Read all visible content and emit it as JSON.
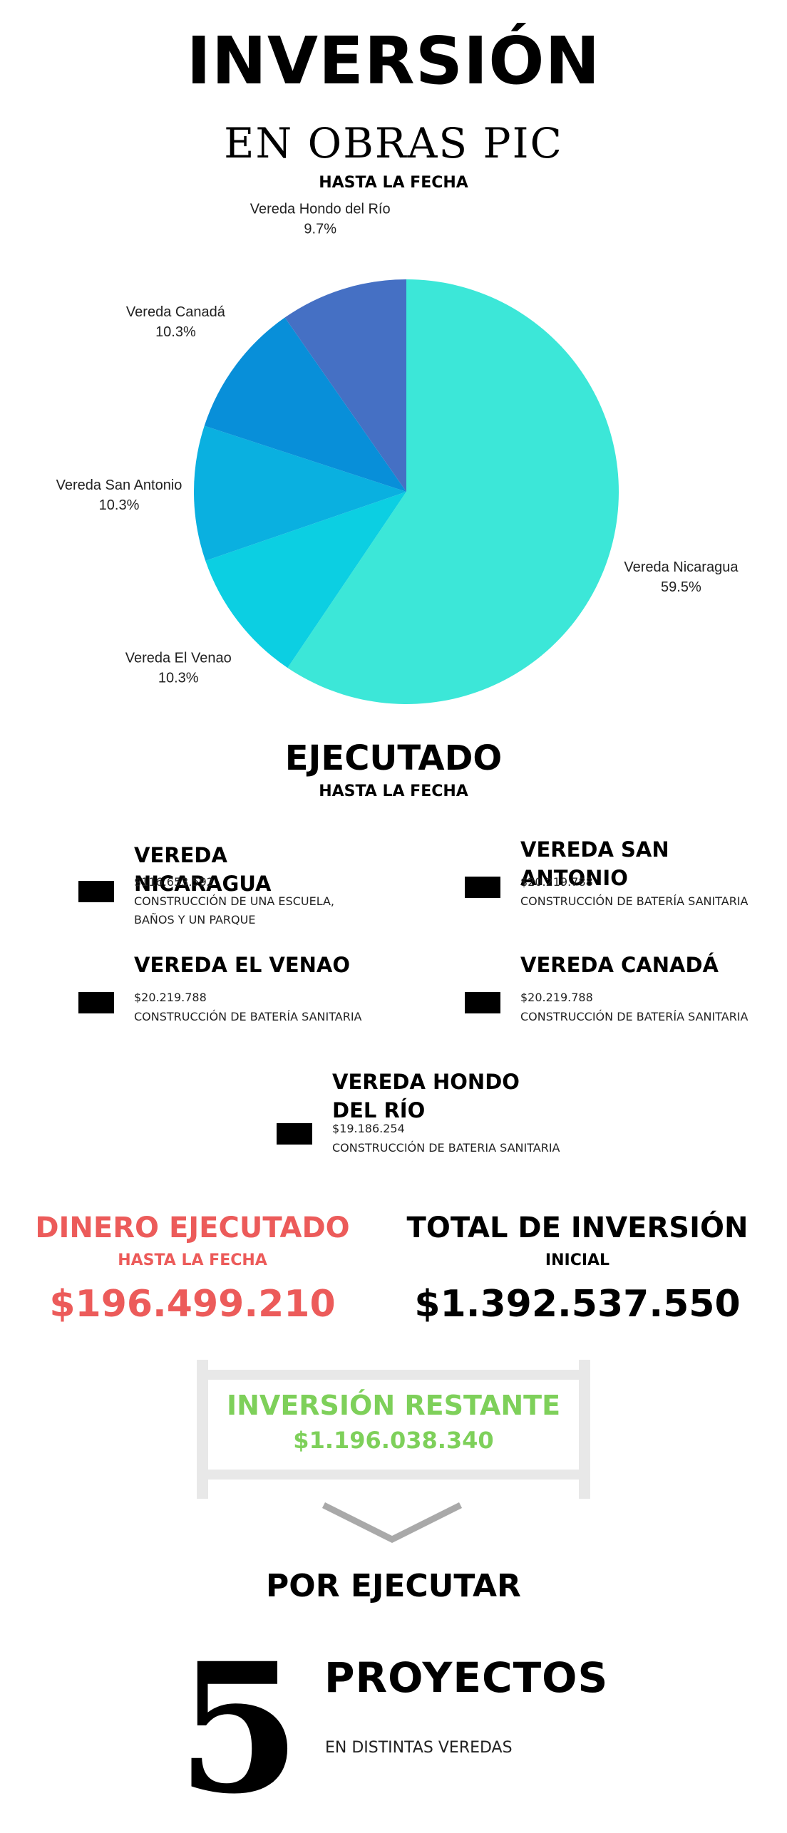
{
  "header": {
    "title": "INVERSIÓN",
    "subtitle": "EN OBRAS PIC",
    "date_label": "HASTA LA FECHA"
  },
  "chart_data": {
    "type": "pie",
    "title": "",
    "slices": [
      {
        "label": "Vereda Nicaragua",
        "value": 59.5,
        "value_label": "59.5%",
        "color": "#3ce7d8"
      },
      {
        "label": "Vereda El Venao",
        "value": 10.3,
        "value_label": "10.3%",
        "color": "#0ccfe2"
      },
      {
        "label": "Vereda San Antonio",
        "value": 10.3,
        "value_label": "10.3%",
        "color": "#0ab0e0"
      },
      {
        "label": "Vereda Canadá",
        "value": 10.3,
        "value_label": "10.3%",
        "color": "#088fd9"
      },
      {
        "label": "Vereda Hondo del Río",
        "value": 9.7,
        "value_label": "9.7%",
        "color": "#4570c4"
      }
    ],
    "start": "top",
    "direction": "clockwise",
    "legend": "none"
  },
  "executed": {
    "title": "EJECUTADO",
    "date_label": "HASTA LA FECHA",
    "veredas": [
      {
        "name": "VEREDA NICARAGUA",
        "amount": "$116.653.592",
        "description": "CONSTRUCCIÓN DE UNA  ESCUELA, BAÑOS Y UN PARQUE"
      },
      {
        "name": "VEREDA SAN ANTONIO",
        "amount": "$20.219.788",
        "description": "CONSTRUCCIÓN DE BATERÍA SANITARIA"
      },
      {
        "name": "VEREDA EL VENAO",
        "amount": "$20.219.788",
        "description": "CONSTRUCCIÓN DE BATERÍA SANITARIA"
      },
      {
        "name": "VEREDA CANADÁ",
        "amount": "$20.219.788",
        "description": "CONSTRUCCIÓN DE BATERÍA SANITARIA"
      },
      {
        "name": "VEREDA HONDO DEL RÍO",
        "amount": "$19.186.254",
        "description": "CONSTRUCCIÓN DE BATERIA SANITARIA"
      }
    ]
  },
  "summary": {
    "dinero_label": "DINERO EJECUTADO",
    "dinero_date": "HASTA LA FECHA",
    "dinero_value": "$196.499.210",
    "total_label": "TOTAL DE INVERSIÓN",
    "total_date": "INICIAL",
    "total_value": "$1.392.537.550",
    "restante_label": "INVERSIÓN RESTANTE",
    "restante_value": "$1.196.038.340"
  },
  "pending": {
    "label": "POR EJECUTAR",
    "count": "5",
    "projects_label": "PROYECTOS",
    "projects_sub": "EN DISTINTAS VEREDAS"
  },
  "colors": {
    "red_accent": "#ec5b5a",
    "green_accent": "#7ed05a"
  }
}
